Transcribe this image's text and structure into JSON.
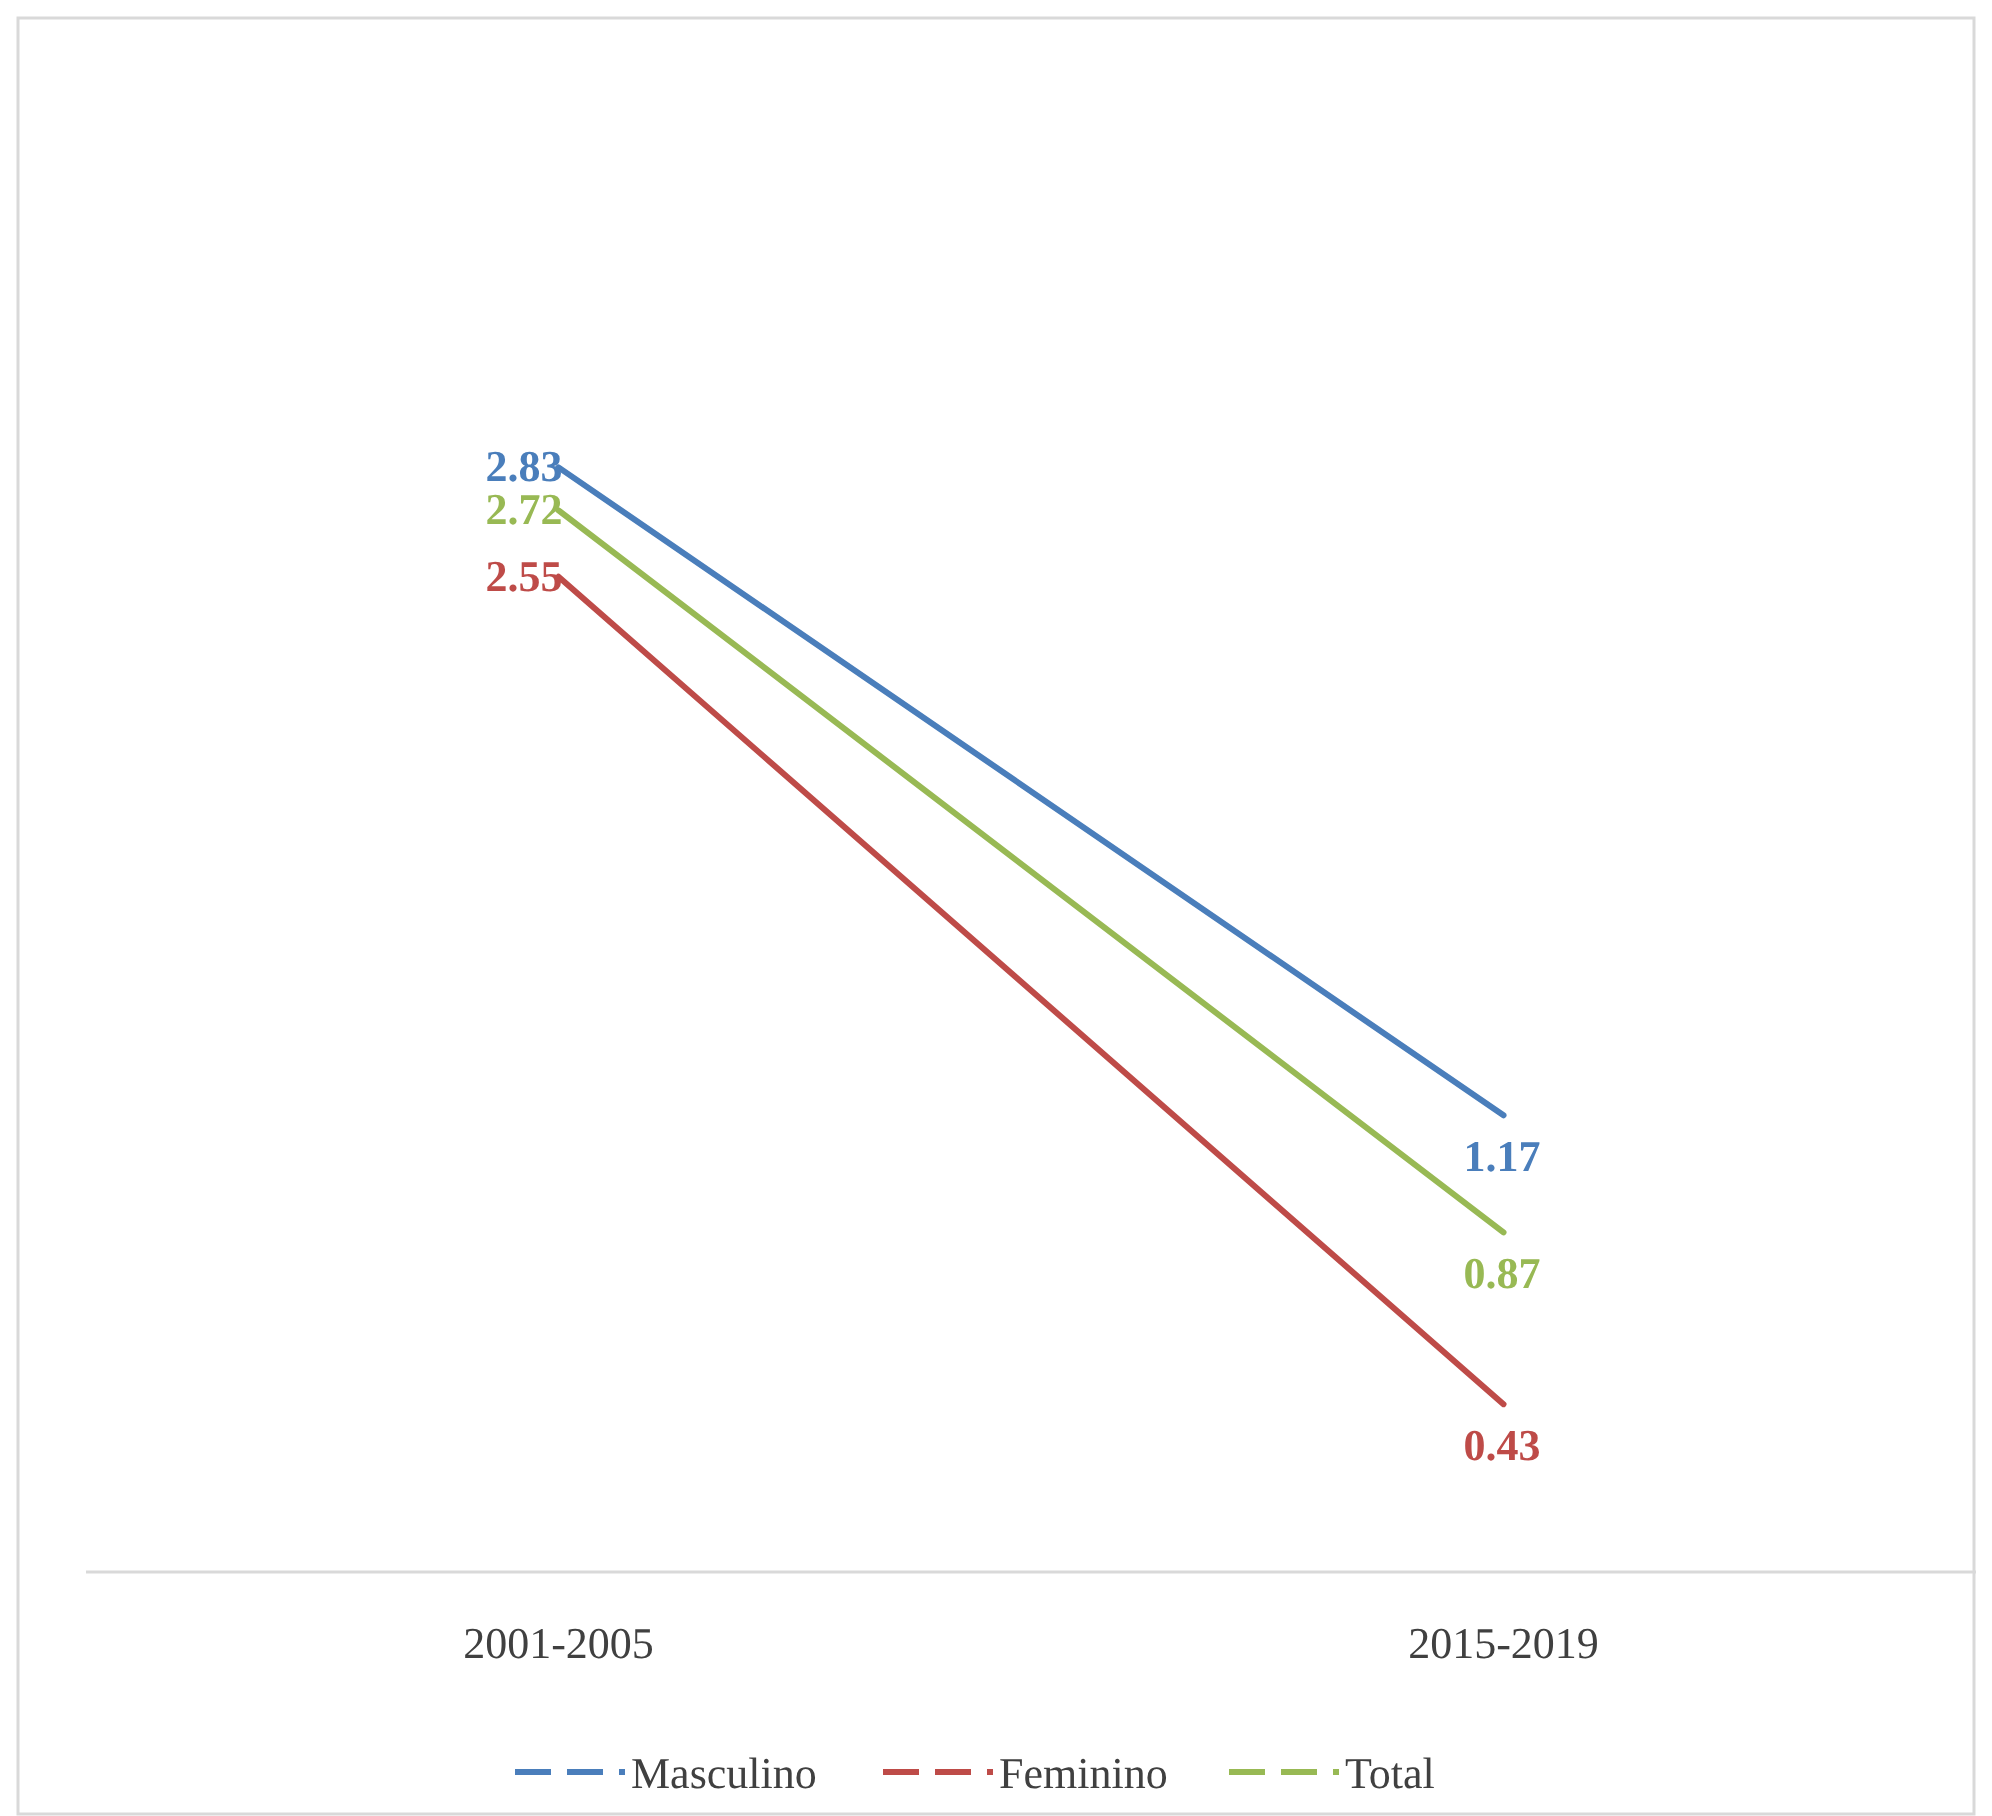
{
  "chart_data": {
    "type": "line",
    "categories": [
      "2001-2005",
      "2015-2019"
    ],
    "series": [
      {
        "name": "Masculino",
        "color": "#4a7ebb",
        "values": [
          2.83,
          1.17
        ]
      },
      {
        "name": "Feminino",
        "color": "#be4b48",
        "values": [
          2.55,
          0.43
        ]
      },
      {
        "name": "Total",
        "color": "#98b954",
        "values": [
          2.72,
          0.87
        ]
      }
    ],
    "data_labels": true,
    "legend": "bottom",
    "marker": "none",
    "line_style": "solid",
    "grid": false
  }
}
